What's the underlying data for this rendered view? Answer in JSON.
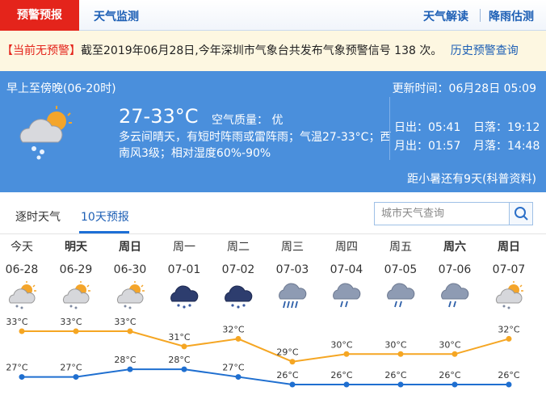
{
  "nav": {
    "active": "预警预报",
    "tab": "天气监测",
    "links": [
      "天气解读",
      "降雨估测"
    ]
  },
  "alert": {
    "status": "【当前无预警】",
    "text": "截至2019年06月28日,今年深圳市气象台共发布气象预警信号 138 次。",
    "link": "历史预警查询"
  },
  "today": {
    "period": "早上至傍晚(06-20时)",
    "updated": "更新时间：06月28日 05:09",
    "temp": "27-33°C",
    "air": "空气质量： 优",
    "description": "多云间晴天，有短时阵雨或雷阵雨；气温27-33°C；西南风3级；相对湿度60%-90%",
    "sun_moon": [
      {
        "label": "日出：",
        "time": "05:41"
      },
      {
        "label": "日落：",
        "time": "19:12"
      },
      {
        "label": "月出：",
        "time": "01:57"
      },
      {
        "label": "月落：",
        "time": "14:48"
      }
    ],
    "solar_term": "距小暑还有9天(科普资料)"
  },
  "tabs": [
    "逐时天气",
    "10天预报"
  ],
  "search_placeholder": "城市天气查询",
  "chart_data": {
    "type": "line",
    "weekdays": [
      "今天",
      "明天",
      "周日",
      "周一",
      "周二",
      "周三",
      "周四",
      "周五",
      "周六",
      "周日"
    ],
    "categories": [
      "06-28",
      "06-29",
      "06-30",
      "07-01",
      "07-02",
      "07-03",
      "07-04",
      "07-05",
      "07-06",
      "07-07"
    ],
    "series": [
      {
        "color": "#f5a623",
        "values": [
          33,
          33,
          33,
          31,
          32,
          29,
          30,
          30,
          30,
          32
        ],
        "value_labels": [
          "33°C",
          "33°C",
          "33°C",
          "31°C",
          "32°C",
          "29°C",
          "30°C",
          "30°C",
          "30°C",
          "32°C"
        ]
      },
      {
        "color": "#1f6fd0",
        "values": [
          27,
          27,
          28,
          28,
          27,
          26,
          26,
          26,
          26,
          26
        ],
        "value_labels": [
          "27°C",
          "27°C",
          "28°C",
          "28°C",
          "27°C",
          "26°C",
          "26°C",
          "26°C",
          "26°C",
          "26°C"
        ]
      }
    ]
  }
}
